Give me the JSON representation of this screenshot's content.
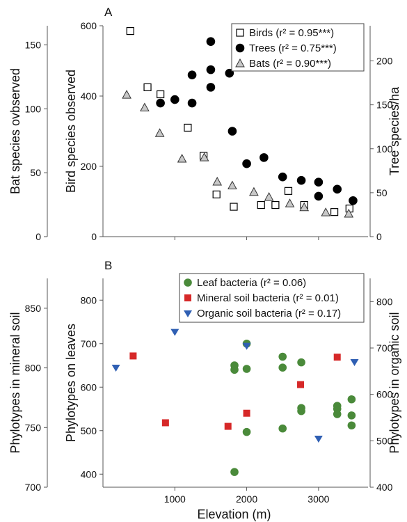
{
  "chart_data": [
    {
      "type": "scatter",
      "panel_label": "A",
      "xlim": [
        0,
        3650
      ],
      "xticks": [
        1000,
        2000,
        3000
      ],
      "axes": {
        "left_outer": {
          "label": "Bat species ovbserved",
          "ylim": [
            0,
            165
          ],
          "ticks": [
            "0",
            "50",
            "100",
            "150"
          ]
        },
        "left_inner": {
          "label": "Bird species observed",
          "ylim": [
            0,
            600
          ],
          "ticks": [
            "0",
            "200",
            "400",
            "600"
          ]
        },
        "right": {
          "label": "Tree species/ha",
          "ylim": [
            0,
            240
          ],
          "ticks": [
            "0",
            "50",
            "100",
            "150",
            "200"
          ]
        }
      },
      "legend": {
        "position": "top-right"
      },
      "series": [
        {
          "name": "Birds",
          "stat": "(r² = 0.95***)",
          "marker": "open-square",
          "axis": "left_inner",
          "color": "#ffffff",
          "points": [
            [
              380,
              585
            ],
            [
              620,
              425
            ],
            [
              800,
              405
            ],
            [
              1180,
              310
            ],
            [
              1400,
              230
            ],
            [
              1580,
              120
            ],
            [
              1820,
              85
            ],
            [
              2200,
              90
            ],
            [
              2400,
              90
            ],
            [
              2580,
              130
            ],
            [
              2800,
              90
            ],
            [
              3220,
              70
            ],
            [
              3430,
              80
            ]
          ]
        },
        {
          "name": "Trees",
          "stat": "(r² = 0.75***)",
          "marker": "filled-circle",
          "axis": "right",
          "color": "#000000",
          "points": [
            [
              800,
              152
            ],
            [
              1000,
              156
            ],
            [
              1240,
              184
            ],
            [
              1240,
              152
            ],
            [
              1500,
              222
            ],
            [
              1500,
              190
            ],
            [
              1500,
              170
            ],
            [
              1760,
              186
            ],
            [
              1800,
              120
            ],
            [
              2000,
              83
            ],
            [
              2240,
              90
            ],
            [
              2500,
              68
            ],
            [
              2760,
              64
            ],
            [
              3000,
              62
            ],
            [
              3000,
              46
            ],
            [
              3260,
              54
            ],
            [
              3480,
              41
            ]
          ]
        },
        {
          "name": "Bats",
          "stat": "(r² = 0.90***)",
          "marker": "open-triangle",
          "axis": "left_outer",
          "color": "#c8c8c8",
          "points": [
            [
              330,
              111
            ],
            [
              580,
              101
            ],
            [
              790,
              81
            ],
            [
              1100,
              61
            ],
            [
              1410,
              62
            ],
            [
              1590,
              43
            ],
            [
              1800,
              40
            ],
            [
              2100,
              35
            ],
            [
              2310,
              31
            ],
            [
              2600,
              26
            ],
            [
              2800,
              23
            ],
            [
              3100,
              19
            ],
            [
              3420,
              18
            ]
          ]
        }
      ]
    },
    {
      "type": "scatter",
      "panel_label": "B",
      "xlabel": "Elevation (m)",
      "xlim": [
        0,
        3650
      ],
      "xticks": [
        1000,
        2000,
        3000
      ],
      "xtick_labels": [
        "1000",
        "2000",
        "3000"
      ],
      "axes": {
        "left_outer": {
          "label": "Phylotypes in mineral soil",
          "ylim": [
            700,
            875
          ],
          "ticks": [
            "700",
            "750",
            "800",
            "850"
          ]
        },
        "left_inner": {
          "label": "Phylotypes on leaves",
          "ylim": [
            370,
            850
          ],
          "ticks": [
            "400",
            "500",
            "600",
            "700",
            "800"
          ]
        },
        "right": {
          "label": "Phylotypes in organic soil",
          "ylim": [
            400,
            850
          ],
          "ticks": [
            "400",
            "500",
            "600",
            "700",
            "800"
          ]
        }
      },
      "legend": {
        "position": "top-right"
      },
      "series": [
        {
          "name": "Leaf bacteria",
          "stat": "(r² = 0.06)",
          "marker": "filled-circle",
          "axis": "left_inner",
          "color": "#4a8a3a",
          "points": [
            [
              1830,
              405
            ],
            [
              1830,
              640
            ],
            [
              1830,
              650
            ],
            [
              2000,
              497
            ],
            [
              2000,
              642
            ],
            [
              2000,
              700
            ],
            [
              2500,
              505
            ],
            [
              2500,
              645
            ],
            [
              2500,
              670
            ],
            [
              2760,
              545
            ],
            [
              2760,
              552
            ],
            [
              2760,
              657
            ],
            [
              3260,
              538
            ],
            [
              3260,
              550
            ],
            [
              3260,
              557
            ],
            [
              3460,
              512
            ],
            [
              3460,
              535
            ],
            [
              3460,
              572
            ]
          ]
        },
        {
          "name": "Mineral soil bacteria",
          "stat": "(r² = 0.01)",
          "marker": "filled-square",
          "axis": "left_outer",
          "color": "#d62828",
          "points": [
            [
              420,
              810
            ],
            [
              870,
              754
            ],
            [
              1740,
              751
            ],
            [
              2000,
              762
            ],
            [
              2750,
              786
            ],
            [
              3260,
              809
            ]
          ]
        },
        {
          "name": "Organic soil bacteria",
          "stat": "(r² = 0.17)",
          "marker": "filled-triangle-down",
          "axis": "right",
          "color": "#2f5fb3",
          "points": [
            [
              180,
              658
            ],
            [
              1000,
              735
            ],
            [
              2000,
              705
            ],
            [
              3000,
              505
            ],
            [
              3500,
              670
            ]
          ]
        }
      ]
    }
  ]
}
